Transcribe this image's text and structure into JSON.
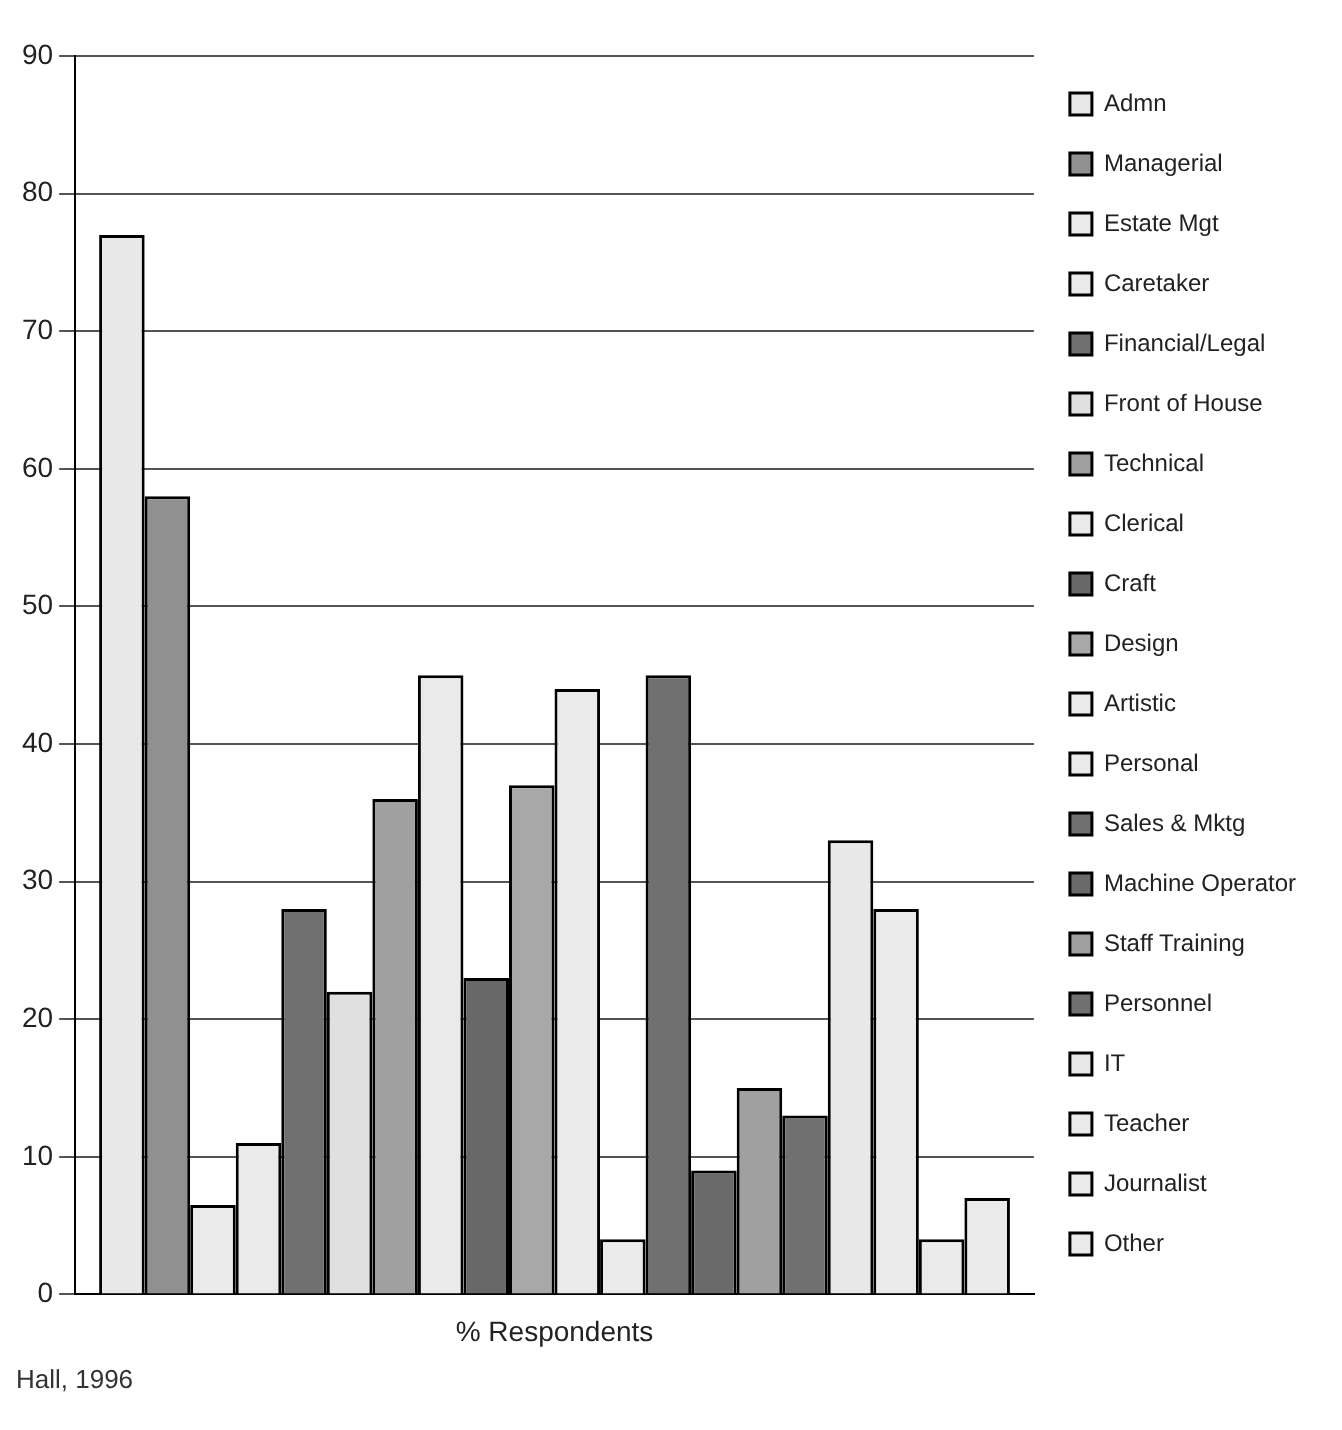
{
  "chart_data": {
    "type": "bar",
    "categories": [
      "% Respondents"
    ],
    "series": [
      {
        "name": "Admn",
        "color": "#e8e8e8",
        "values": [
          77
        ]
      },
      {
        "name": "Managerial",
        "color": "#909090",
        "values": [
          58
        ]
      },
      {
        "name": "Estate Mgt",
        "color": "#eaeaea",
        "values": [
          6.5
        ]
      },
      {
        "name": "Caretaker",
        "color": "#eaeaea",
        "values": [
          11
        ]
      },
      {
        "name": "Financial/Legal",
        "color": "#707070",
        "values": [
          28
        ]
      },
      {
        "name": "Front of House",
        "color": "#e0e0e0",
        "values": [
          22
        ]
      },
      {
        "name": "Technical",
        "color": "#a0a0a0",
        "values": [
          36
        ]
      },
      {
        "name": "Clerical",
        "color": "#eaeaea",
        "values": [
          45
        ]
      },
      {
        "name": "Craft",
        "color": "#686868",
        "values": [
          23
        ]
      },
      {
        "name": "Design",
        "color": "#a8a8a8",
        "values": [
          37
        ]
      },
      {
        "name": "Artistic",
        "color": "#eaeaea",
        "values": [
          44
        ]
      },
      {
        "name": "Personal",
        "color": "#eaeaea",
        "values": [
          4
        ]
      },
      {
        "name": "Sales & Mktg",
        "color": "#707070",
        "values": [
          45
        ]
      },
      {
        "name": "Machine Operator",
        "color": "#6a6a6a",
        "values": [
          9
        ]
      },
      {
        "name": "Staff Training",
        "color": "#a0a0a0",
        "values": [
          15
        ]
      },
      {
        "name": "Personnel",
        "color": "#707070",
        "values": [
          13
        ]
      },
      {
        "name": "IT",
        "color": "#e8e8e8",
        "values": [
          33
        ]
      },
      {
        "name": "Teacher",
        "color": "#eaeaea",
        "values": [
          28
        ]
      },
      {
        "name": "Journalist",
        "color": "#eaeaea",
        "values": [
          4
        ]
      },
      {
        "name": "Other",
        "color": "#eaeaea",
        "values": [
          7
        ]
      }
    ],
    "ylim": [
      0,
      90
    ],
    "yticks": [
      0,
      10,
      20,
      30,
      40,
      50,
      60,
      70,
      80,
      90
    ],
    "grid": "y",
    "legend": "right",
    "annotations": [
      "Hall, 1996"
    ]
  }
}
